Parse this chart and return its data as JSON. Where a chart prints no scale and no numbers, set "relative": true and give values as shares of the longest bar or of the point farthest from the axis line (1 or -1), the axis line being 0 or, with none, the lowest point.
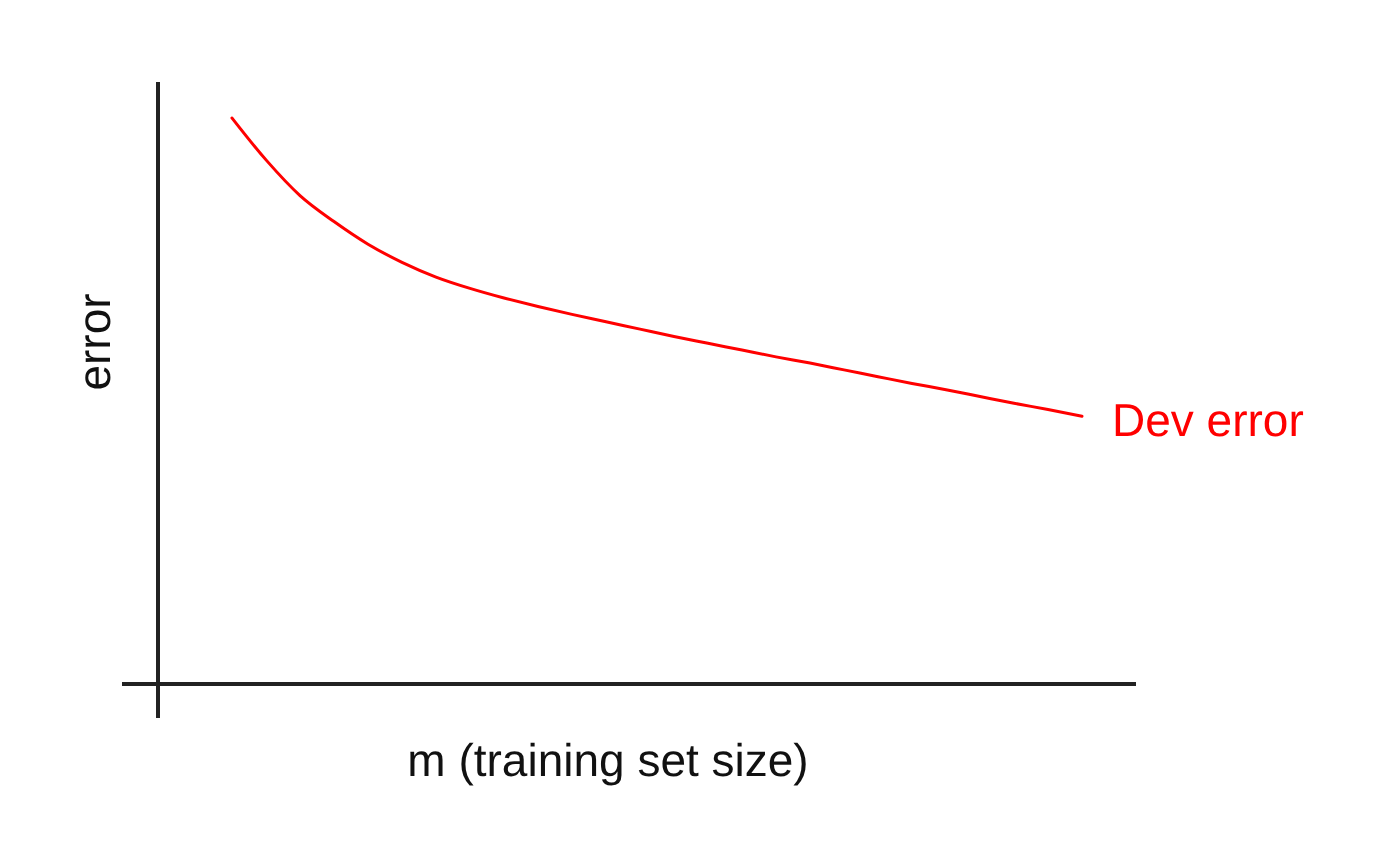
{
  "chart_data": {
    "type": "line",
    "xlabel": "m (training set size)",
    "ylabel": "error",
    "relative": true,
    "categories": [
      null,
      null,
      null,
      null,
      null,
      null,
      null,
      null,
      null,
      null,
      null,
      null,
      null,
      null,
      null,
      null,
      null,
      null,
      null,
      null,
      null,
      null,
      null,
      null,
      null,
      null
    ],
    "series": [
      {
        "name": "Dev error",
        "color": "#ff0000",
        "values": [
          1,
          0.926,
          0.863,
          0.817,
          0.777,
          0.745,
          0.719,
          0.699,
          0.682,
          0.667,
          0.653,
          0.64,
          0.627,
          0.614,
          0.602,
          0.59,
          0.578,
          0.567,
          0.555,
          0.543,
          0.531,
          0.52,
          0.508,
          0.496,
          0.485,
          0.473
        ]
      }
    ]
  }
}
